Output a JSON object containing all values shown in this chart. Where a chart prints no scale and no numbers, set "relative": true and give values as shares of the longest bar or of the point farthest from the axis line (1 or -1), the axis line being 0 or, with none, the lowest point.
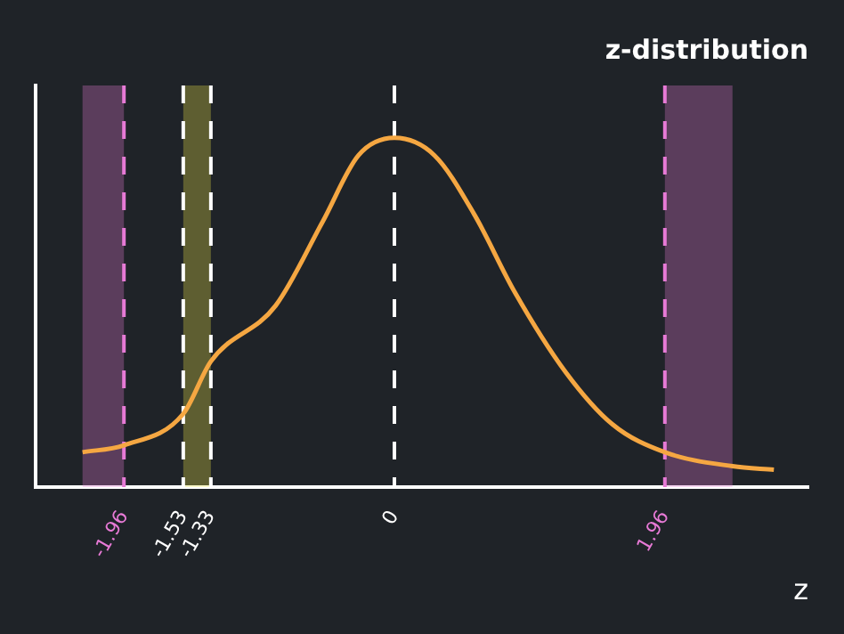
{
  "chart_data": {
    "type": "line",
    "title": "z-distribution",
    "xlabel": "z",
    "relative": true,
    "color": "#f5a742",
    "x": [
      -2.26,
      -1.96,
      -1.53,
      -1.33,
      -0.86,
      -0.52,
      -0.26,
      0,
      0.29,
      0.58,
      0.87,
      1.24,
      1.58,
      1.96,
      2.45,
      2.75
    ],
    "values": [
      0.1,
      0.12,
      0.21,
      0.36,
      0.52,
      0.76,
      0.95,
      1,
      0.95,
      0.78,
      0.56,
      0.33,
      0.18,
      0.1,
      0.06,
      0.05
    ],
    "xlim": [
      -2.6,
      3.0
    ],
    "xticks": [
      -1.96,
      -1.53,
      -1.33,
      0,
      1.96
    ],
    "ref_lines": [
      {
        "axis": "x",
        "value": -1.96,
        "color": "#e77ad6",
        "line_style": "dashed"
      },
      {
        "axis": "x",
        "value": -1.53,
        "color": "#ffffff",
        "line_style": "dashed"
      },
      {
        "axis": "x",
        "value": -1.33,
        "color": "#ffffff",
        "line_style": "dashed"
      },
      {
        "axis": "x",
        "value": 0,
        "color": "#ffffff",
        "line_style": "dashed"
      },
      {
        "axis": "x",
        "value": 1.96,
        "color": "#e77ad6",
        "line_style": "dashed"
      }
    ],
    "bands": [
      {
        "axis": "x",
        "from": -2.26,
        "to": -1.96,
        "color": "#e77ad6"
      },
      {
        "axis": "x",
        "from": -1.53,
        "to": -1.33,
        "color": "#f2e84a"
      },
      {
        "axis": "x",
        "from": 1.96,
        "to": 2.45,
        "color": "#e77ad6"
      }
    ],
    "grid": false,
    "legend": false,
    "marker": "none",
    "line_style": "solid"
  }
}
